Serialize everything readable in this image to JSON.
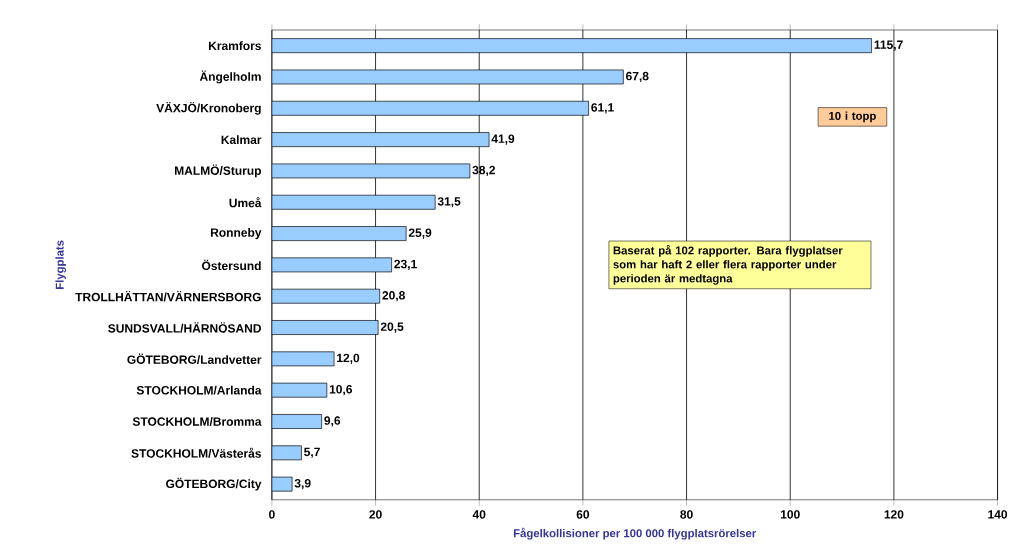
{
  "chart_data": {
    "type": "bar",
    "orientation": "horizontal",
    "xlabel": "Fågelkollisioner per 100 000 flygplatsrörelser",
    "ylabel": "Flygplats",
    "categories": [
      "Kramfors",
      "Ängelholm",
      "VÄXJÖ/Kronoberg",
      "Kalmar",
      "MALMÖ/Sturup",
      "Umeå",
      "Ronneby",
      "Östersund",
      "TROLLHÄTTAN/VÄRNERSBORG",
      "SUNDSVALL/HÄRNÖSAND",
      "GÖTEBORG/Landvetter",
      "STOCKHOLM/Arlanda",
      "STOCKHOLM/Bromma",
      "STOCKHOLM/Västerås",
      "GÖTEBORG/City"
    ],
    "values": [
      115.7,
      67.8,
      61.1,
      41.9,
      38.2,
      31.5,
      25.9,
      23.1,
      20.8,
      20.5,
      12.0,
      10.6,
      9.6,
      5.7,
      3.9
    ],
    "value_labels": [
      "115,7",
      "67,8",
      "61,1",
      "41,9",
      "38,2",
      "31,5",
      "25,9",
      "23,1",
      "20,8",
      "20,5",
      "12,0",
      "10,6",
      "9,6",
      "5,7",
      "3,9"
    ],
    "color": "#99ccff",
    "xlim": [
      0,
      140
    ],
    "xticks": [
      0,
      20,
      40,
      60,
      80,
      100,
      120,
      140
    ],
    "grid": "x",
    "annotations": [
      "10 i topp",
      "Baserat på 102 rapporter. Bara flygplatser som har haft 2 eller flera rapporter under perioden är medtagna"
    ]
  }
}
